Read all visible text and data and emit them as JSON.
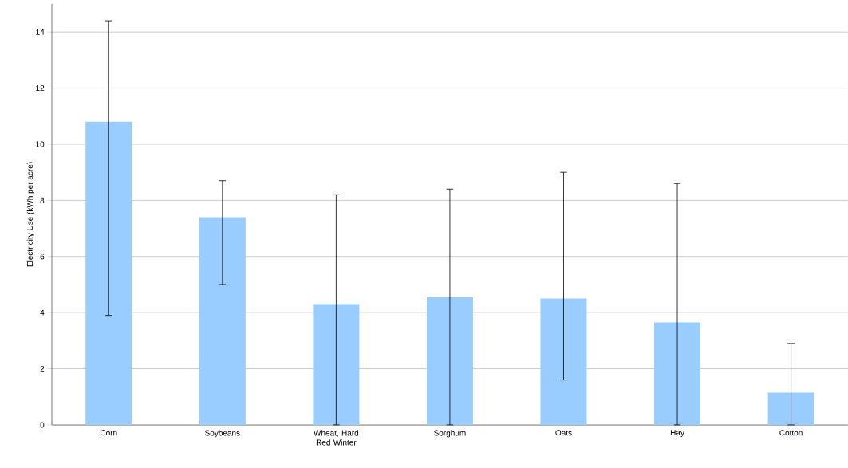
{
  "chart_data": {
    "type": "bar",
    "ylabel": "Electricity Use (kWh per acre)",
    "categories": [
      "Corn",
      "Soybeans",
      "Wheat, Hard Red Winter",
      "Sorghum",
      "Oats",
      "Hay",
      "Cotton"
    ],
    "values": [
      10.8,
      7.4,
      4.3,
      4.55,
      4.5,
      3.65,
      1.15
    ],
    "errors": [
      [
        3.9,
        14.4
      ],
      [
        5.0,
        8.7
      ],
      [
        0,
        8.2
      ],
      [
        0,
        8.4
      ],
      [
        1.6,
        9.0
      ],
      [
        0,
        8.6
      ],
      [
        0,
        2.9
      ]
    ],
    "color": "#99ccff",
    "ylim": [
      0,
      15
    ],
    "yticks": [
      0,
      2,
      4,
      6,
      8,
      10,
      12,
      14
    ],
    "grid": "y"
  }
}
